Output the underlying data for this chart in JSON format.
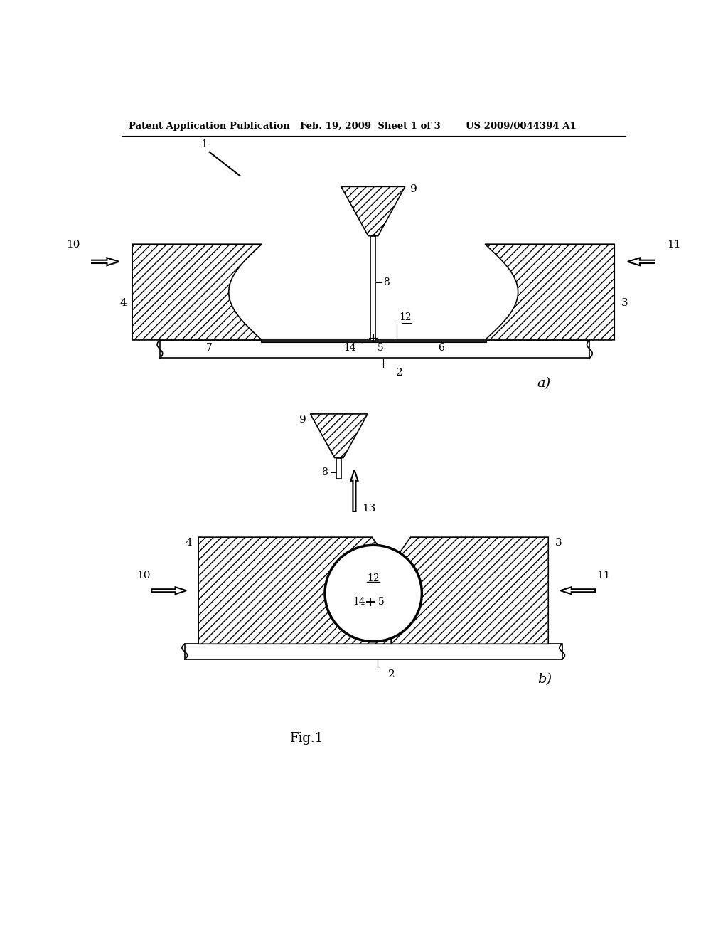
{
  "background_color": "#ffffff",
  "hatch_pattern": "///",
  "line_color": "#000000",
  "header_left": "Patent Application Publication",
  "header_mid": "Feb. 19, 2009  Sheet 1 of 3",
  "header_right": "US 2009/0044394 A1",
  "fig_label_a": "a)",
  "fig_label_b": "b)",
  "fig_caption": "Fig.1",
  "label_1": "1",
  "label_2": "2",
  "label_3": "3",
  "label_4": "4",
  "label_5": "5",
  "label_6": "6",
  "label_7": "7",
  "label_8": "8",
  "label_9": "9",
  "label_10": "10",
  "label_11": "11",
  "label_12": "12",
  "label_13": "13",
  "label_14": "14"
}
